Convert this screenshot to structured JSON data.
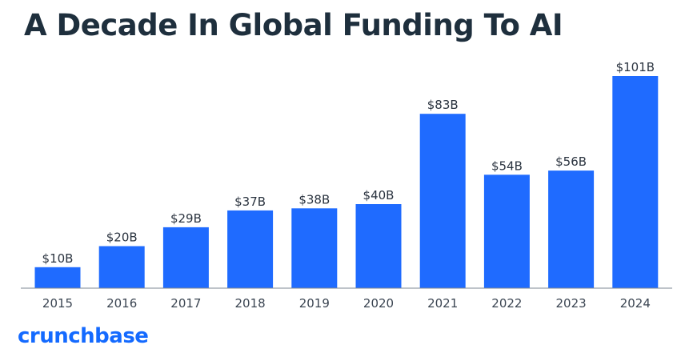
{
  "colors": {
    "bar": "#1f6bff",
    "title": "#1e2f3d",
    "axis": "#7d8793",
    "logo": "#146aff"
  },
  "chart_data": {
    "type": "bar",
    "title": "A Decade In Global Funding To AI",
    "xlabel": "",
    "ylabel": "",
    "categories": [
      "2015",
      "2016",
      "2017",
      "2018",
      "2019",
      "2020",
      "2021",
      "2022",
      "2023",
      "2024"
    ],
    "values": [
      10,
      20,
      29,
      37,
      38,
      40,
      83,
      54,
      56,
      101
    ],
    "data_labels": [
      "$10B",
      "$20B",
      "$29B",
      "$37B",
      "$38B",
      "$40B",
      "$83B",
      "$54B",
      "$56B",
      "$101B"
    ],
    "ylim": [
      0,
      101
    ],
    "grid": false,
    "legend": "none"
  },
  "footer": {
    "logo_text": "crunchbase"
  }
}
